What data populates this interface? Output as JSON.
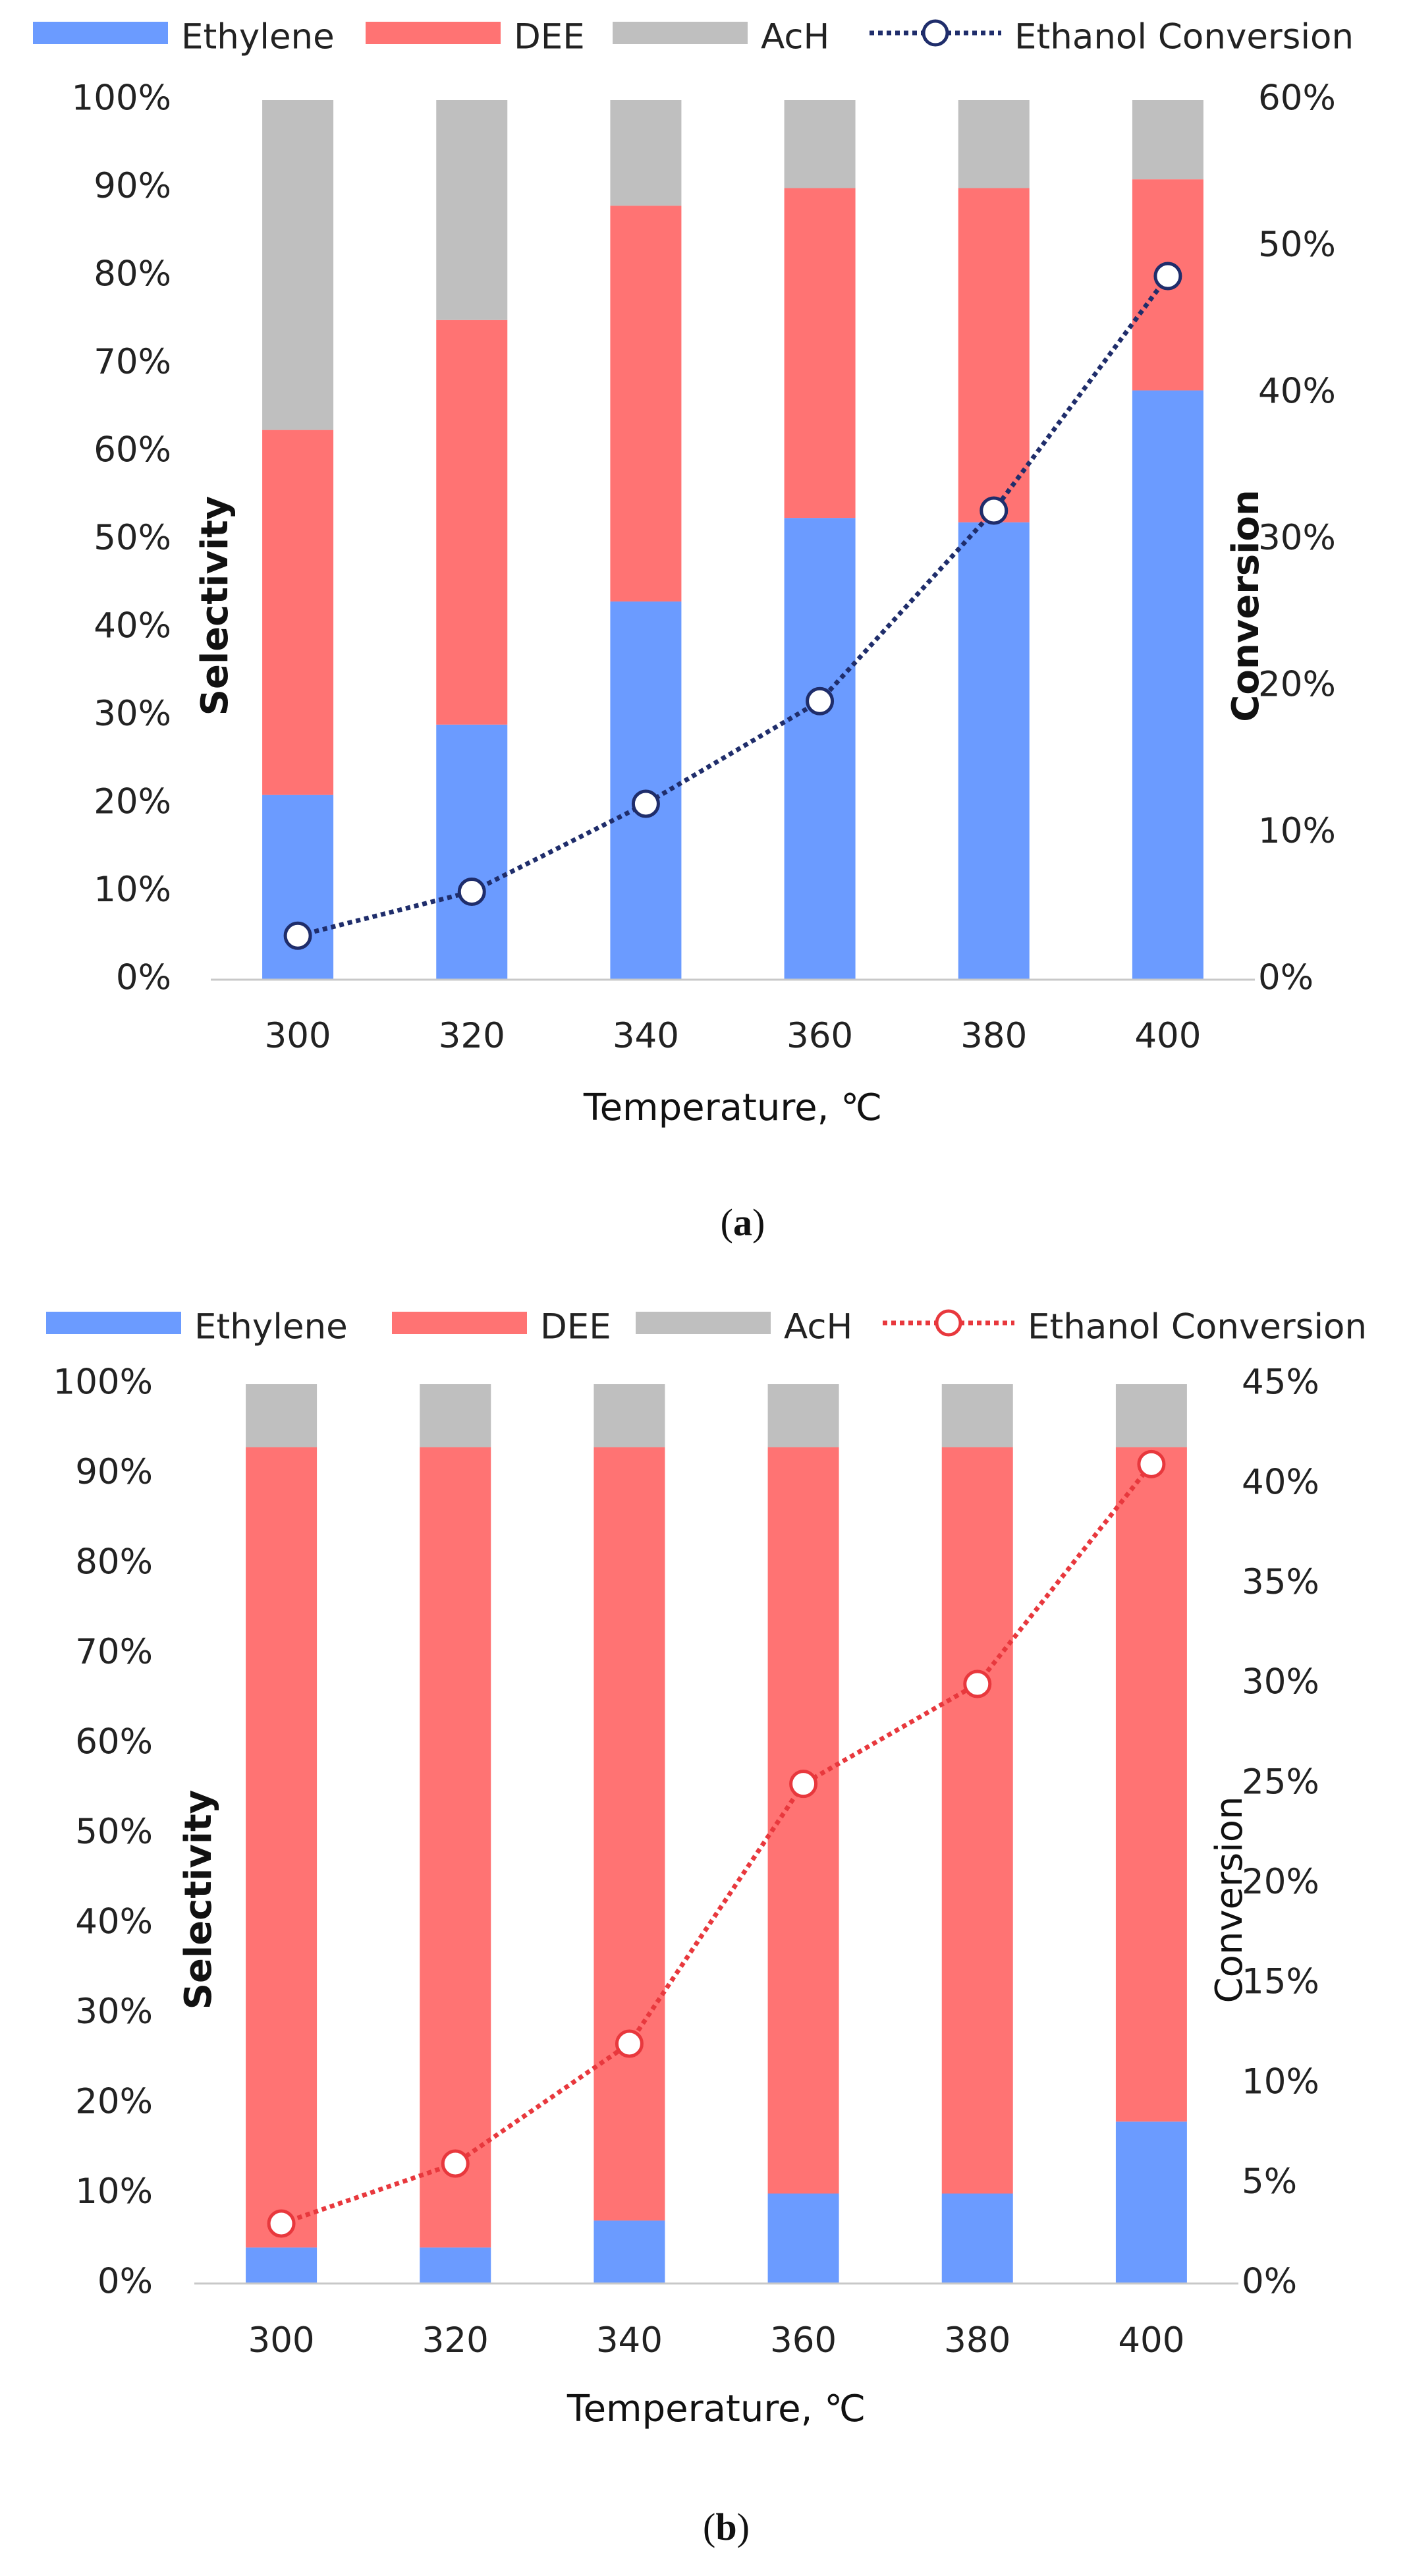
{
  "chart_data": [
    {
      "id": "a",
      "type": "bar",
      "stacked": true,
      "categories": [
        "300",
        "320",
        "340",
        "360",
        "380",
        "400"
      ],
      "xlabel": "Temperature, ℃",
      "ylabel": "Selectivity",
      "y2label": "Conversion",
      "ylim": [
        0,
        100
      ],
      "y2lim": [
        0,
        60
      ],
      "yticks": [
        "0%",
        "10%",
        "20%",
        "30%",
        "40%",
        "50%",
        "60%",
        "70%",
        "80%",
        "90%",
        "100%"
      ],
      "y2ticks": [
        "0%",
        "10%",
        "20%",
        "30%",
        "40%",
        "50%",
        "60%"
      ],
      "series": [
        {
          "name": "Ethylene",
          "color": "#6b9bff",
          "values": [
            21,
            29,
            43,
            52.5,
            52,
            67
          ]
        },
        {
          "name": "DEE",
          "color": "#ff7373",
          "values": [
            41.5,
            46,
            45,
            37.5,
            38,
            24
          ]
        },
        {
          "name": "AcH",
          "color": "#bfbfbf",
          "values": [
            37.5,
            25,
            12,
            10,
            10,
            9
          ]
        }
      ],
      "line": {
        "name": "Ethanol Conversion",
        "axis": "y2",
        "color": "#1f2d6b",
        "values": [
          3,
          6,
          12,
          19,
          32,
          48
        ]
      },
      "caption": "(a)"
    },
    {
      "id": "b",
      "type": "bar",
      "stacked": true,
      "categories": [
        "300",
        "320",
        "340",
        "360",
        "380",
        "400"
      ],
      "xlabel": "Temperature, ℃",
      "ylabel": "Selectivity",
      "y2label": "Conversion",
      "ylim": [
        0,
        100
      ],
      "y2lim": [
        0,
        45
      ],
      "yticks": [
        "0%",
        "10%",
        "20%",
        "30%",
        "40%",
        "50%",
        "60%",
        "70%",
        "80%",
        "90%",
        "100%"
      ],
      "y2ticks": [
        "0%",
        "5%",
        "10%",
        "15%",
        "20%",
        "25%",
        "30%",
        "35%",
        "40%",
        "45%"
      ],
      "series": [
        {
          "name": "Ethylene",
          "color": "#6b9bff",
          "values": [
            4,
            4,
            7,
            10,
            10,
            18
          ]
        },
        {
          "name": "DEE",
          "color": "#ff7373",
          "values": [
            89,
            89,
            86,
            83,
            83,
            75
          ]
        },
        {
          "name": "AcH",
          "color": "#bfbfbf",
          "values": [
            7,
            7,
            7,
            7,
            7,
            7
          ]
        }
      ],
      "line": {
        "name": "Ethanol Conversion",
        "axis": "y2",
        "color": "#e8383d",
        "values": [
          3,
          6,
          12,
          25,
          30,
          41
        ]
      },
      "caption": "(b)"
    }
  ]
}
